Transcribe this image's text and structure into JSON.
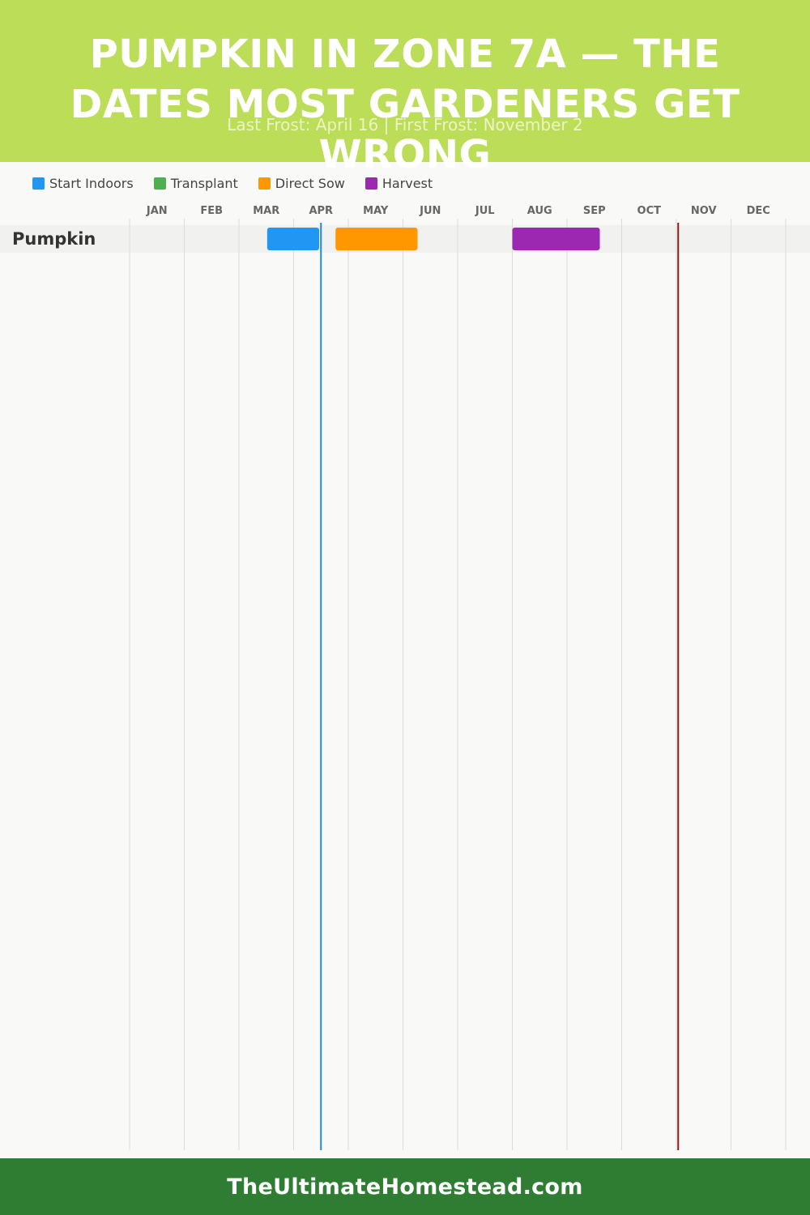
{
  "header": {
    "title": "PUMPKIN IN ZONE 7A — THE DATES MOST GARDENERS GET WRONG",
    "subtitle": "Last Frost: April 16 | First Frost: November 2"
  },
  "legend": [
    {
      "label": "Start Indoors",
      "color": "#2196f3"
    },
    {
      "label": "Transplant",
      "color": "#4caf50"
    },
    {
      "label": "Direct Sow",
      "color": "#ff9800"
    },
    {
      "label": "Harvest",
      "color": "#9c27b0"
    }
  ],
  "chart_data": {
    "type": "gantt",
    "months": [
      "JAN",
      "FEB",
      "MAR",
      "APR",
      "MAY",
      "JUN",
      "JUL",
      "AUG",
      "SEP",
      "OCT",
      "NOV",
      "DEC"
    ],
    "crops": [
      {
        "name": "Pumpkin",
        "bars": [
          {
            "stage": "Start Indoors",
            "start": "03-17",
            "end": "04-15",
            "color": "#2196f3"
          },
          {
            "stage": "Direct Sow",
            "start": "04-24",
            "end": "06-09",
            "color": "#ff9800"
          },
          {
            "stage": "Harvest",
            "start": "08-01",
            "end": "09-19",
            "color": "#9c27b0"
          }
        ]
      }
    ],
    "markers": [
      {
        "label": "Last Frost",
        "date": "04-16",
        "color": "#1e88e5"
      },
      {
        "label": "First Frost",
        "date": "11-02",
        "color": "#8b1a1a"
      }
    ]
  },
  "footer": {
    "site": "TheUltimateHomestead.com"
  }
}
